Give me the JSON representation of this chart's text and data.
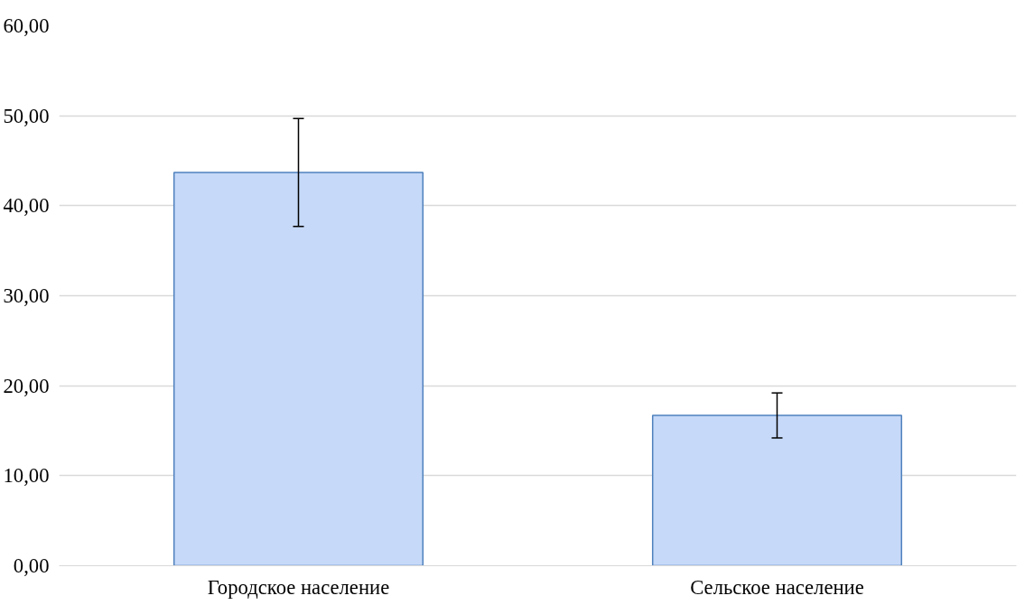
{
  "chart_data": {
    "type": "bar",
    "categories": [
      "Городское население",
      "Сельское население"
    ],
    "values": [
      43.7,
      16.7
    ],
    "errors": [
      6.0,
      2.5
    ],
    "color": "#c6d9f8",
    "ylim": [
      0,
      60
    ],
    "yticks": [
      {
        "value": 0,
        "label": "0,00"
      },
      {
        "value": 10,
        "label": "10,00"
      },
      {
        "value": 20,
        "label": "20,00"
      },
      {
        "value": 30,
        "label": "30,00"
      },
      {
        "value": 40,
        "label": "40,00"
      },
      {
        "value": 50,
        "label": "50,00"
      },
      {
        "value": 60,
        "label": "60,00"
      }
    ],
    "grid": "y"
  }
}
